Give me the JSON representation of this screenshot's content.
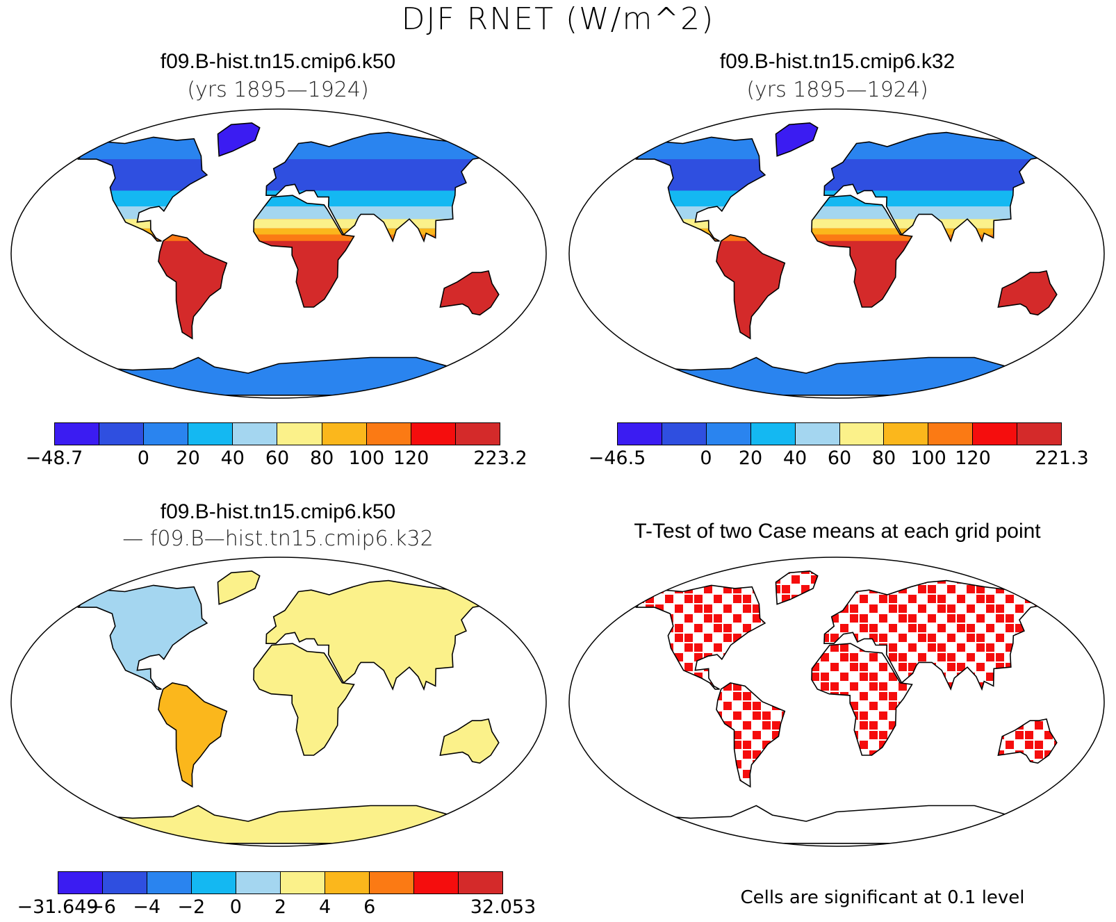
{
  "title": "DJF RNET (W/m^2)",
  "panels": [
    {
      "title": "f09.B-hist.tn15.cmip6.k50",
      "subtitle": "(yrs 1895—1924)",
      "style": "abs"
    },
    {
      "title": "f09.B-hist.tn15.cmip6.k32",
      "subtitle": "(yrs 1895—1924)",
      "style": "abs"
    },
    {
      "title": "f09.B-hist.tn15.cmip6.k50",
      "subtitle": "— f09.B—hist.tn15.cmip6.k32",
      "style": "diff"
    },
    {
      "title": "T-Test of two Case means at each grid point",
      "subtitle": "",
      "style": "ttest"
    }
  ],
  "colorbars": [
    {
      "colors": [
        "#3b1cf2",
        "#2f4fe0",
        "#2a84ef",
        "#14b8f2",
        "#a4d6f0",
        "#fbf18a",
        "#fbb71c",
        "#fb7a14",
        "#f50d0d",
        "#d42a2a"
      ],
      "labels": [
        "−48.7",
        "",
        "0",
        "20",
        "40",
        "60",
        "80",
        "100",
        "120",
        "223.2"
      ]
    },
    {
      "colors": [
        "#3b1cf2",
        "#2f4fe0",
        "#2a84ef",
        "#14b8f2",
        "#a4d6f0",
        "#fbf18a",
        "#fbb71c",
        "#fb7a14",
        "#f50d0d",
        "#d42a2a"
      ],
      "labels": [
        "−46.5",
        "",
        "0",
        "20",
        "40",
        "60",
        "80",
        "100",
        "120",
        "221.3"
      ]
    },
    {
      "colors": [
        "#3b1cf2",
        "#2f4fe0",
        "#2a84ef",
        "#14b8f2",
        "#a4d6f0",
        "#fbf18a",
        "#fbb71c",
        "#fb7a14",
        "#f50d0d",
        "#d42a2a"
      ],
      "labels": [
        "−31.649",
        "−6",
        "−4",
        "−2",
        "0",
        "2",
        "4",
        "6",
        "",
        "32.053"
      ]
    }
  ],
  "significance_note": "Cells are significant at 0.1 level",
  "ttest_color": "#f50d0d"
}
